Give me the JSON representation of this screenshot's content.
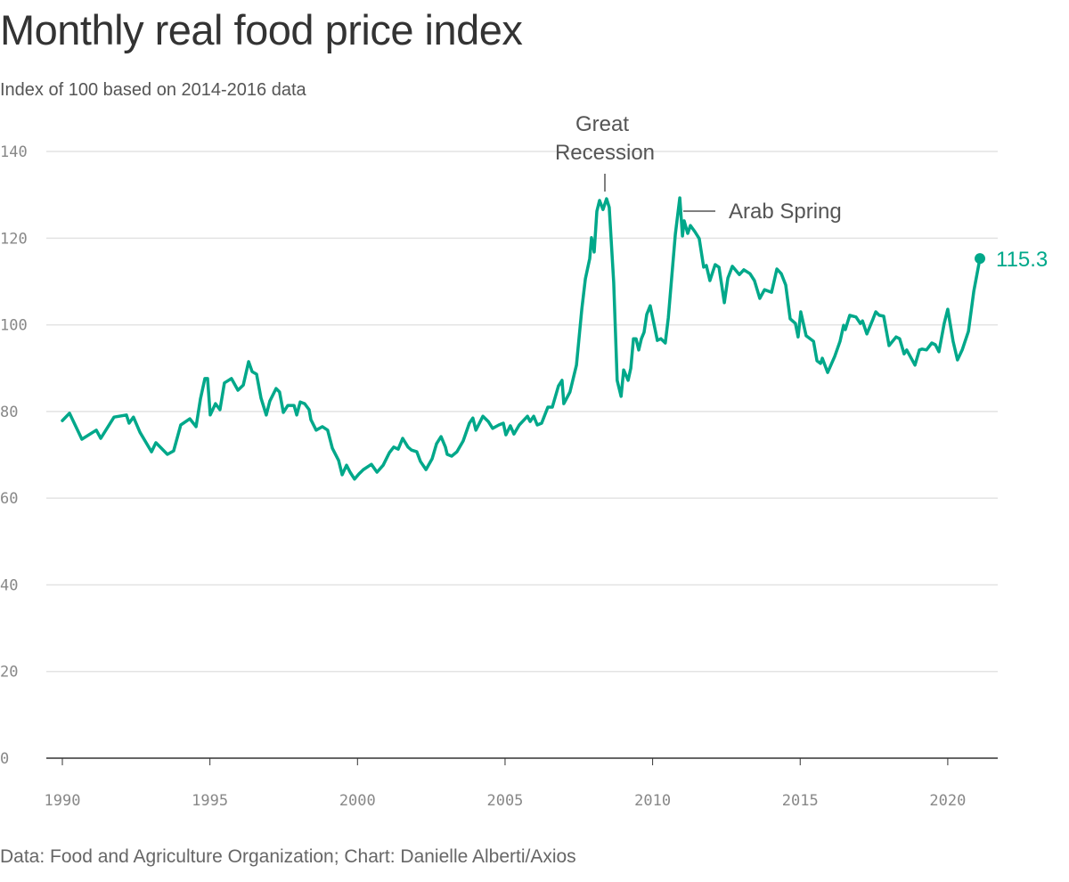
{
  "title": "Monthly real food price index",
  "subtitle": "Index of 100 based on 2014-2016 data",
  "footer": "Data: Food and Agriculture Organization; Chart: Danielle Alberti/Axios",
  "colors": {
    "line": "#00a88a",
    "grid": "#e3e3e3",
    "axis": "#333333",
    "text": "#333333"
  },
  "chart_data": {
    "type": "line",
    "title": "Monthly real food price index",
    "subtitle": "Index of 100 based on 2014-2016 data",
    "xlabel": "",
    "ylabel": "",
    "xlim": [
      1990,
      2021.1
    ],
    "ylim": [
      0,
      140
    ],
    "grid": true,
    "x_ticks": [
      "1990",
      "1995",
      "2000",
      "2005",
      "2010",
      "2015",
      "2020"
    ],
    "y_ticks": [
      "0",
      "20",
      "40",
      "60",
      "80",
      "100",
      "120",
      "140"
    ],
    "annotations": [
      {
        "label_lines": [
          "Great",
          "Recession"
        ],
        "x": 2008.4,
        "y": 129.1
      },
      {
        "label": "Arab Spring",
        "x": 2010.92,
        "y": 129.3
      }
    ],
    "end_label": "115.3",
    "series": [
      {
        "points": [
          [
            1990.0,
            77.9
          ],
          [
            1990.24,
            79.6
          ],
          [
            1990.66,
            73.6
          ],
          [
            1991.15,
            75.7
          ],
          [
            1991.3,
            73.8
          ],
          [
            1991.75,
            78.7
          ],
          [
            1992.17,
            79.2
          ],
          [
            1992.26,
            77.3
          ],
          [
            1992.41,
            78.7
          ],
          [
            1992.63,
            75.2
          ],
          [
            1993.02,
            70.7
          ],
          [
            1993.17,
            72.8
          ],
          [
            1993.56,
            70.1
          ],
          [
            1993.77,
            70.9
          ],
          [
            1994.01,
            76.9
          ],
          [
            1994.32,
            78.3
          ],
          [
            1994.53,
            76.5
          ],
          [
            1994.68,
            82.9
          ],
          [
            1994.83,
            87.6
          ],
          [
            1994.92,
            87.6
          ],
          [
            1995.01,
            79.2
          ],
          [
            1995.19,
            81.8
          ],
          [
            1995.34,
            80.4
          ],
          [
            1995.49,
            86.6
          ],
          [
            1995.73,
            87.6
          ],
          [
            1995.95,
            84.9
          ],
          [
            1996.13,
            86.1
          ],
          [
            1996.31,
            91.5
          ],
          [
            1996.43,
            89.2
          ],
          [
            1996.58,
            88.6
          ],
          [
            1996.73,
            83.1
          ],
          [
            1996.91,
            79.2
          ],
          [
            1997.03,
            82.4
          ],
          [
            1997.24,
            85.3
          ],
          [
            1997.36,
            84.5
          ],
          [
            1997.49,
            79.8
          ],
          [
            1997.64,
            81.4
          ],
          [
            1997.85,
            81.4
          ],
          [
            1997.94,
            79.2
          ],
          [
            1998.06,
            82.2
          ],
          [
            1998.21,
            81.8
          ],
          [
            1998.36,
            80.4
          ],
          [
            1998.42,
            78.1
          ],
          [
            1998.6,
            75.7
          ],
          [
            1998.81,
            76.5
          ],
          [
            1998.99,
            75.7
          ],
          [
            1999.15,
            71.5
          ],
          [
            1999.36,
            68.7
          ],
          [
            1999.48,
            65.4
          ],
          [
            1999.63,
            67.6
          ],
          [
            1999.75,
            66.0
          ],
          [
            1999.9,
            64.4
          ],
          [
            2000.05,
            65.6
          ],
          [
            2000.2,
            66.6
          ],
          [
            2000.47,
            67.8
          ],
          [
            2000.66,
            66.0
          ],
          [
            2000.87,
            67.6
          ],
          [
            2001.08,
            70.5
          ],
          [
            2001.23,
            71.8
          ],
          [
            2001.38,
            71.3
          ],
          [
            2001.53,
            73.8
          ],
          [
            2001.71,
            71.8
          ],
          [
            2001.83,
            71.1
          ],
          [
            2002.01,
            70.7
          ],
          [
            2002.13,
            68.5
          ],
          [
            2002.32,
            66.6
          ],
          [
            2002.53,
            69.1
          ],
          [
            2002.68,
            72.6
          ],
          [
            2002.83,
            74.2
          ],
          [
            2002.98,
            71.8
          ],
          [
            2003.04,
            70.1
          ],
          [
            2003.19,
            69.7
          ],
          [
            2003.37,
            70.7
          ],
          [
            2003.58,
            73.2
          ],
          [
            2003.79,
            77.3
          ],
          [
            2003.91,
            78.5
          ],
          [
            2004.01,
            75.7
          ],
          [
            2004.25,
            78.9
          ],
          [
            2004.43,
            77.7
          ],
          [
            2004.58,
            76.1
          ],
          [
            2004.79,
            76.9
          ],
          [
            2004.94,
            77.3
          ],
          [
            2005.03,
            74.6
          ],
          [
            2005.18,
            76.7
          ],
          [
            2005.3,
            74.8
          ],
          [
            2005.48,
            76.9
          ],
          [
            2005.76,
            78.9
          ],
          [
            2005.85,
            77.7
          ],
          [
            2005.97,
            78.9
          ],
          [
            2006.09,
            76.9
          ],
          [
            2006.24,
            77.3
          ],
          [
            2006.45,
            81.0
          ],
          [
            2006.6,
            81.0
          ],
          [
            2006.81,
            85.9
          ],
          [
            2006.93,
            87.2
          ],
          [
            2006.99,
            81.8
          ],
          [
            2007.2,
            84.5
          ],
          [
            2007.42,
            90.7
          ],
          [
            2007.6,
            103.6
          ],
          [
            2007.72,
            110.6
          ],
          [
            2007.87,
            115.3
          ],
          [
            2007.93,
            120.1
          ],
          [
            2008.02,
            116.8
          ],
          [
            2008.11,
            126.2
          ],
          [
            2008.2,
            128.7
          ],
          [
            2008.32,
            126.6
          ],
          [
            2008.44,
            129.1
          ],
          [
            2008.53,
            127.1
          ],
          [
            2008.68,
            109.8
          ],
          [
            2008.8,
            87.2
          ],
          [
            2008.93,
            83.5
          ],
          [
            2009.02,
            89.6
          ],
          [
            2009.17,
            87.2
          ],
          [
            2009.26,
            90.0
          ],
          [
            2009.35,
            96.8
          ],
          [
            2009.44,
            96.8
          ],
          [
            2009.53,
            94.2
          ],
          [
            2009.62,
            96.8
          ],
          [
            2009.71,
            98.3
          ],
          [
            2009.8,
            102.4
          ],
          [
            2009.92,
            104.4
          ],
          [
            2010.16,
            96.4
          ],
          [
            2010.28,
            96.8
          ],
          [
            2010.43,
            95.8
          ],
          [
            2010.53,
            101.6
          ],
          [
            2010.77,
            120.9
          ],
          [
            2010.92,
            129.3
          ],
          [
            2011.01,
            120.5
          ],
          [
            2011.07,
            124.0
          ],
          [
            2011.19,
            121.1
          ],
          [
            2011.28,
            122.9
          ],
          [
            2011.43,
            121.5
          ],
          [
            2011.58,
            119.9
          ],
          [
            2011.73,
            113.3
          ],
          [
            2011.82,
            113.7
          ],
          [
            2011.94,
            110.2
          ],
          [
            2012.12,
            113.9
          ],
          [
            2012.25,
            113.3
          ],
          [
            2012.43,
            105.1
          ],
          [
            2012.55,
            110.8
          ],
          [
            2012.7,
            113.5
          ],
          [
            2012.94,
            111.6
          ],
          [
            2013.09,
            112.7
          ],
          [
            2013.3,
            111.8
          ],
          [
            2013.45,
            110.2
          ],
          [
            2013.63,
            106.1
          ],
          [
            2013.79,
            108.1
          ],
          [
            2014.03,
            107.5
          ],
          [
            2014.21,
            112.9
          ],
          [
            2014.36,
            111.8
          ],
          [
            2014.51,
            109.2
          ],
          [
            2014.66,
            101.4
          ],
          [
            2014.84,
            100.3
          ],
          [
            2014.93,
            97.2
          ],
          [
            2015.02,
            103.0
          ],
          [
            2015.2,
            97.5
          ],
          [
            2015.45,
            96.2
          ],
          [
            2015.57,
            91.7
          ],
          [
            2015.69,
            91.1
          ],
          [
            2015.75,
            92.3
          ],
          [
            2015.93,
            89.0
          ],
          [
            2016.17,
            92.7
          ],
          [
            2016.35,
            96.2
          ],
          [
            2016.47,
            99.9
          ],
          [
            2016.53,
            98.9
          ],
          [
            2016.68,
            102.2
          ],
          [
            2016.89,
            101.8
          ],
          [
            2017.04,
            100.3
          ],
          [
            2017.11,
            100.9
          ],
          [
            2017.26,
            97.9
          ],
          [
            2017.47,
            101.4
          ],
          [
            2017.56,
            103.0
          ],
          [
            2017.68,
            102.2
          ],
          [
            2017.83,
            102.0
          ],
          [
            2018.01,
            95.2
          ],
          [
            2018.25,
            97.2
          ],
          [
            2018.37,
            96.8
          ],
          [
            2018.52,
            93.3
          ],
          [
            2018.61,
            94.2
          ],
          [
            2018.89,
            90.7
          ],
          [
            2019.04,
            94.2
          ],
          [
            2019.13,
            94.4
          ],
          [
            2019.28,
            94.2
          ],
          [
            2019.46,
            95.8
          ],
          [
            2019.58,
            95.4
          ],
          [
            2019.7,
            93.8
          ],
          [
            2019.88,
            100.3
          ],
          [
            2020.0,
            103.6
          ],
          [
            2020.18,
            96.2
          ],
          [
            2020.33,
            91.9
          ],
          [
            2020.49,
            94.2
          ],
          [
            2020.7,
            98.5
          ],
          [
            2020.88,
            107.7
          ],
          [
            2021.09,
            115.3
          ]
        ]
      }
    ]
  }
}
